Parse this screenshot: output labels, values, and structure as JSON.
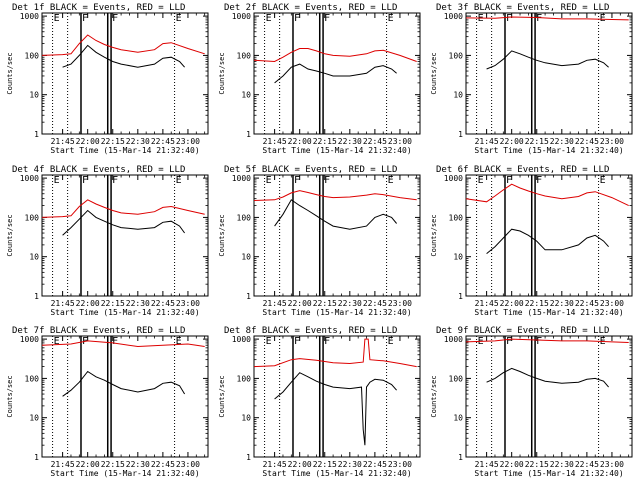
{
  "figure": {
    "xlabel": "Start Time (15-Mar-14 21:32:40)",
    "ylabel": "Counts/sec",
    "x_ticks": [
      "21:45",
      "22:00",
      "22:15",
      "22:30",
      "22:45",
      "23:00"
    ],
    "y_ticks": [
      "1",
      "10",
      "100",
      "1000"
    ],
    "series_colors": {
      "events": "#000000",
      "lld": "#dd0000"
    }
  },
  "chart_data": [
    {
      "type": "line",
      "title": "Det 1f BLACK = Events, RED = LLD",
      "xlim": [
        "21:32:40",
        "23:12:00"
      ],
      "ylim": [
        1,
        1200
      ],
      "yscale": "log",
      "markers": [
        {
          "x": "21:39",
          "label": "E",
          "style": "dotted"
        },
        {
          "x": "21:48",
          "label": "",
          "style": "dotted"
        },
        {
          "x": "21:56",
          "label": "F",
          "style": "solid"
        },
        {
          "x": "22:12",
          "label": "",
          "style": "solid"
        },
        {
          "x": "22:14",
          "label": "F",
          "style": "solid"
        },
        {
          "x": "22:52",
          "label": "E",
          "style": "dotted"
        }
      ],
      "series": [
        {
          "name": "LLD",
          "color": "#dd0000",
          "x": [
            "21:32:40",
            "21:45",
            "21:50",
            "21:55",
            "22:00",
            "22:05",
            "22:10",
            "22:15",
            "22:20",
            "22:30",
            "22:40",
            "22:45",
            "22:50",
            "23:00",
            "23:10"
          ],
          "values": [
            100,
            105,
            110,
            200,
            330,
            240,
            190,
            160,
            140,
            120,
            140,
            200,
            210,
            150,
            110
          ]
        },
        {
          "name": "Events",
          "color": "#000000",
          "x": [
            "21:45",
            "21:50",
            "21:55",
            "22:00",
            "22:05",
            "22:10",
            "22:15",
            "22:20",
            "22:30",
            "22:40",
            "22:45",
            "22:50",
            "22:55",
            "22:58"
          ],
          "values": [
            50,
            60,
            100,
            180,
            120,
            90,
            70,
            60,
            50,
            60,
            85,
            90,
            70,
            50
          ]
        }
      ]
    },
    {
      "type": "line",
      "title": "Det 2f BLACK = Events, RED = LLD",
      "xlim": [
        "21:32:40",
        "23:12:00"
      ],
      "ylim": [
        1,
        1200
      ],
      "yscale": "log",
      "markers": [
        {
          "x": "21:39",
          "label": "E",
          "style": "dotted"
        },
        {
          "x": "21:48",
          "label": "",
          "style": "dotted"
        },
        {
          "x": "21:56",
          "label": "F",
          "style": "solid"
        },
        {
          "x": "22:12",
          "label": "",
          "style": "solid"
        },
        {
          "x": "22:14",
          "label": "F",
          "style": "solid"
        },
        {
          "x": "22:52",
          "label": "E",
          "style": "dotted"
        }
      ],
      "series": [
        {
          "name": "LLD",
          "color": "#dd0000",
          "x": [
            "21:32:40",
            "21:45",
            "21:50",
            "21:55",
            "22:00",
            "22:05",
            "22:10",
            "22:15",
            "22:20",
            "22:30",
            "22:40",
            "22:45",
            "22:50",
            "23:00",
            "23:10"
          ],
          "values": [
            75,
            70,
            90,
            120,
            150,
            150,
            130,
            110,
            100,
            95,
            110,
            130,
            135,
            100,
            70
          ]
        },
        {
          "name": "Events",
          "color": "#000000",
          "x": [
            "21:45",
            "21:50",
            "21:55",
            "22:00",
            "22:05",
            "22:10",
            "22:15",
            "22:20",
            "22:30",
            "22:40",
            "22:45",
            "22:50",
            "22:55",
            "22:58"
          ],
          "values": [
            20,
            30,
            50,
            60,
            45,
            40,
            35,
            30,
            30,
            35,
            50,
            55,
            45,
            35
          ]
        }
      ]
    },
    {
      "type": "line",
      "title": "Det 3f BLACK = Events, RED = LLD",
      "xlim": [
        "21:32:40",
        "23:12:00"
      ],
      "ylim": [
        1,
        1200
      ],
      "yscale": "log",
      "markers": [
        {
          "x": "21:39",
          "label": "E",
          "style": "dotted"
        },
        {
          "x": "21:48",
          "label": "",
          "style": "dotted"
        },
        {
          "x": "21:56",
          "label": "F",
          "style": "solid"
        },
        {
          "x": "22:12",
          "label": "",
          "style": "solid"
        },
        {
          "x": "22:14",
          "label": "F",
          "style": "solid"
        },
        {
          "x": "22:52",
          "label": "E",
          "style": "dotted"
        }
      ],
      "series": [
        {
          "name": "LLD",
          "color": "#dd0000",
          "x": [
            "21:32:40",
            "21:50",
            "22:00",
            "22:15",
            "22:30",
            "22:45",
            "23:00",
            "23:10"
          ],
          "values": [
            900,
            880,
            950,
            920,
            850,
            850,
            820,
            800
          ]
        },
        {
          "name": "Events",
          "color": "#000000",
          "x": [
            "21:45",
            "21:50",
            "21:55",
            "22:00",
            "22:05",
            "22:10",
            "22:15",
            "22:20",
            "22:30",
            "22:40",
            "22:45",
            "22:50",
            "22:55",
            "22:58"
          ],
          "values": [
            45,
            55,
            80,
            130,
            110,
            90,
            75,
            65,
            55,
            60,
            75,
            80,
            65,
            50
          ]
        }
      ]
    },
    {
      "type": "line",
      "title": "Det 4f BLACK = Events, RED = LLD",
      "xlim": [
        "21:32:40",
        "23:12:00"
      ],
      "ylim": [
        1,
        1200
      ],
      "yscale": "log",
      "markers": [
        {
          "x": "21:39",
          "label": "E",
          "style": "dotted"
        },
        {
          "x": "21:48",
          "label": "",
          "style": "dotted"
        },
        {
          "x": "21:56",
          "label": "F",
          "style": "solid"
        },
        {
          "x": "22:12",
          "label": "",
          "style": "solid"
        },
        {
          "x": "22:14",
          "label": "F",
          "style": "solid"
        },
        {
          "x": "22:52",
          "label": "E",
          "style": "dotted"
        }
      ],
      "series": [
        {
          "name": "LLD",
          "color": "#dd0000",
          "x": [
            "21:32:40",
            "21:45",
            "21:50",
            "21:55",
            "22:00",
            "22:05",
            "22:10",
            "22:15",
            "22:20",
            "22:30",
            "22:40",
            "22:45",
            "22:50",
            "23:00",
            "23:10"
          ],
          "values": [
            100,
            105,
            110,
            190,
            280,
            220,
            180,
            150,
            130,
            120,
            140,
            180,
            190,
            150,
            120
          ]
        },
        {
          "name": "Events",
          "color": "#000000",
          "x": [
            "21:45",
            "21:50",
            "21:55",
            "22:00",
            "22:05",
            "22:10",
            "22:15",
            "22:20",
            "22:30",
            "22:40",
            "22:45",
            "22:50",
            "22:55",
            "22:58"
          ],
          "values": [
            35,
            55,
            90,
            150,
            100,
            80,
            65,
            55,
            50,
            55,
            75,
            80,
            60,
            40
          ]
        }
      ]
    },
    {
      "type": "line",
      "title": "Det 5f BLACK = Events, RED = LLD",
      "xlim": [
        "21:32:40",
        "23:12:00"
      ],
      "ylim": [
        1,
        1200
      ],
      "yscale": "log",
      "markers": [
        {
          "x": "21:39",
          "label": "E",
          "style": "dotted"
        },
        {
          "x": "21:48",
          "label": "",
          "style": "dotted"
        },
        {
          "x": "21:56",
          "label": "F",
          "style": "solid"
        },
        {
          "x": "22:12",
          "label": "",
          "style": "solid"
        },
        {
          "x": "22:14",
          "label": "F",
          "style": "solid"
        },
        {
          "x": "22:52",
          "label": "E",
          "style": "dotted"
        }
      ],
      "series": [
        {
          "name": "LLD",
          "color": "#dd0000",
          "x": [
            "21:32:40",
            "21:45",
            "21:50",
            "21:55",
            "22:00",
            "22:05",
            "22:10",
            "22:15",
            "22:20",
            "22:30",
            "22:40",
            "22:45",
            "22:50",
            "23:00",
            "23:10"
          ],
          "values": [
            270,
            280,
            330,
            420,
            480,
            430,
            380,
            340,
            320,
            330,
            370,
            400,
            380,
            320,
            280
          ]
        },
        {
          "name": "Events",
          "color": "#000000",
          "x": [
            "21:45",
            "21:50",
            "21:55",
            "22:00",
            "22:05",
            "22:10",
            "22:15",
            "22:20",
            "22:30",
            "22:40",
            "22:45",
            "22:50",
            "22:55",
            "22:58"
          ],
          "values": [
            60,
            120,
            280,
            200,
            150,
            110,
            80,
            60,
            50,
            60,
            100,
            120,
            100,
            70
          ]
        }
      ]
    },
    {
      "type": "line",
      "title": "Det 6f BLACK = Events, RED = LLD",
      "xlim": [
        "21:32:40",
        "23:12:00"
      ],
      "ylim": [
        1,
        1200
      ],
      "yscale": "log",
      "markers": [
        {
          "x": "21:39",
          "label": "E",
          "style": "dotted"
        },
        {
          "x": "21:48",
          "label": "",
          "style": "dotted"
        },
        {
          "x": "21:56",
          "label": "F",
          "style": "solid"
        },
        {
          "x": "22:12",
          "label": "",
          "style": "solid"
        },
        {
          "x": "22:14",
          "label": "F",
          "style": "solid"
        },
        {
          "x": "22:52",
          "label": "E",
          "style": "dotted"
        }
      ],
      "series": [
        {
          "name": "LLD",
          "color": "#dd0000",
          "x": [
            "21:32:40",
            "21:45",
            "21:50",
            "21:55",
            "22:00",
            "22:05",
            "22:10",
            "22:15",
            "22:20",
            "22:30",
            "22:40",
            "22:45",
            "22:50",
            "23:00",
            "23:10"
          ],
          "values": [
            300,
            250,
            350,
            500,
            700,
            560,
            470,
            400,
            350,
            300,
            340,
            420,
            450,
            320,
            200
          ]
        },
        {
          "name": "Events",
          "color": "#000000",
          "x": [
            "21:45",
            "21:50",
            "21:55",
            "22:00",
            "22:05",
            "22:10",
            "22:15",
            "22:20",
            "22:30",
            "22:40",
            "22:45",
            "22:50",
            "22:55",
            "22:58"
          ],
          "values": [
            12,
            18,
            30,
            50,
            45,
            35,
            25,
            15,
            15,
            20,
            30,
            35,
            25,
            18
          ]
        }
      ]
    },
    {
      "type": "line",
      "title": "Det 7f BLACK = Events, RED = LLD",
      "xlim": [
        "21:32:40",
        "23:12:00"
      ],
      "ylim": [
        1,
        1200
      ],
      "yscale": "log",
      "markers": [
        {
          "x": "21:39",
          "label": "E",
          "style": "dotted"
        },
        {
          "x": "21:48",
          "label": "",
          "style": "dotted"
        },
        {
          "x": "21:56",
          "label": "F",
          "style": "solid"
        },
        {
          "x": "22:12",
          "label": "",
          "style": "solid"
        },
        {
          "x": "22:14",
          "label": "F",
          "style": "solid"
        },
        {
          "x": "22:52",
          "label": "E",
          "style": "dotted"
        }
      ],
      "series": [
        {
          "name": "LLD",
          "color": "#dd0000",
          "x": [
            "21:32:40",
            "21:50",
            "22:00",
            "22:15",
            "22:30",
            "22:45",
            "23:00",
            "23:10"
          ],
          "values": [
            700,
            750,
            900,
            800,
            650,
            700,
            750,
            650
          ]
        },
        {
          "name": "Events",
          "color": "#000000",
          "x": [
            "21:45",
            "21:50",
            "21:55",
            "22:00",
            "22:05",
            "22:10",
            "22:15",
            "22:20",
            "22:30",
            "22:40",
            "22:45",
            "22:50",
            "22:55",
            "22:58"
          ],
          "values": [
            35,
            50,
            80,
            150,
            110,
            90,
            70,
            55,
            45,
            55,
            75,
            80,
            65,
            40
          ]
        }
      ]
    },
    {
      "type": "line",
      "title": "Det 8f BLACK = Events, RED = LLD",
      "xlim": [
        "21:32:40",
        "23:12:00"
      ],
      "ylim": [
        1,
        1200
      ],
      "yscale": "log",
      "markers": [
        {
          "x": "21:39",
          "label": "E",
          "style": "dotted"
        },
        {
          "x": "21:48",
          "label": "",
          "style": "dotted"
        },
        {
          "x": "21:56",
          "label": "F",
          "style": "solid"
        },
        {
          "x": "22:12",
          "label": "",
          "style": "solid"
        },
        {
          "x": "22:14",
          "label": "F",
          "style": "solid"
        },
        {
          "x": "22:52",
          "label": "E",
          "style": "dotted"
        }
      ],
      "series": [
        {
          "name": "LLD",
          "color": "#dd0000",
          "x": [
            "21:32:40",
            "21:45",
            "21:55",
            "22:00",
            "22:10",
            "22:20",
            "22:30",
            "22:38",
            "22:39",
            "22:41",
            "22:42",
            "22:50",
            "23:00",
            "23:10"
          ],
          "values": [
            200,
            210,
            300,
            320,
            290,
            250,
            240,
            260,
            1000,
            1000,
            300,
            280,
            240,
            200
          ]
        },
        {
          "name": "Events",
          "color": "#000000",
          "x": [
            "21:45",
            "21:50",
            "21:55",
            "22:00",
            "22:05",
            "22:10",
            "22:15",
            "22:20",
            "22:30",
            "22:37",
            "22:38",
            "22:39",
            "22:40",
            "22:42",
            "22:45",
            "22:50",
            "22:55",
            "22:58"
          ],
          "values": [
            30,
            45,
            80,
            140,
            110,
            85,
            70,
            60,
            55,
            60,
            5,
            2,
            60,
            80,
            95,
            90,
            70,
            50
          ]
        }
      ]
    },
    {
      "type": "line",
      "title": "Det 9f BLACK = Events, RED = LLD",
      "xlim": [
        "21:32:40",
        "23:12:00"
      ],
      "ylim": [
        1,
        1200
      ],
      "yscale": "log",
      "markers": [
        {
          "x": "21:39",
          "label": "E",
          "style": "dotted"
        },
        {
          "x": "21:48",
          "label": "",
          "style": "dotted"
        },
        {
          "x": "21:56",
          "label": "F",
          "style": "solid"
        },
        {
          "x": "22:12",
          "label": "",
          "style": "solid"
        },
        {
          "x": "22:14",
          "label": "F",
          "style": "solid"
        },
        {
          "x": "22:52",
          "label": "E",
          "style": "dotted"
        }
      ],
      "series": [
        {
          "name": "LLD",
          "color": "#dd0000",
          "x": [
            "21:32:40",
            "21:50",
            "22:00",
            "22:15",
            "22:30",
            "22:45",
            "23:00",
            "23:10"
          ],
          "values": [
            850,
            900,
            1000,
            950,
            900,
            900,
            850,
            820
          ]
        },
        {
          "name": "Events",
          "color": "#000000",
          "x": [
            "21:45",
            "21:50",
            "21:55",
            "22:00",
            "22:05",
            "22:10",
            "22:15",
            "22:20",
            "22:30",
            "22:40",
            "22:45",
            "22:50",
            "22:55",
            "22:58"
          ],
          "values": [
            80,
            100,
            140,
            180,
            150,
            120,
            100,
            85,
            75,
            80,
            95,
            100,
            85,
            60
          ]
        }
      ]
    }
  ]
}
